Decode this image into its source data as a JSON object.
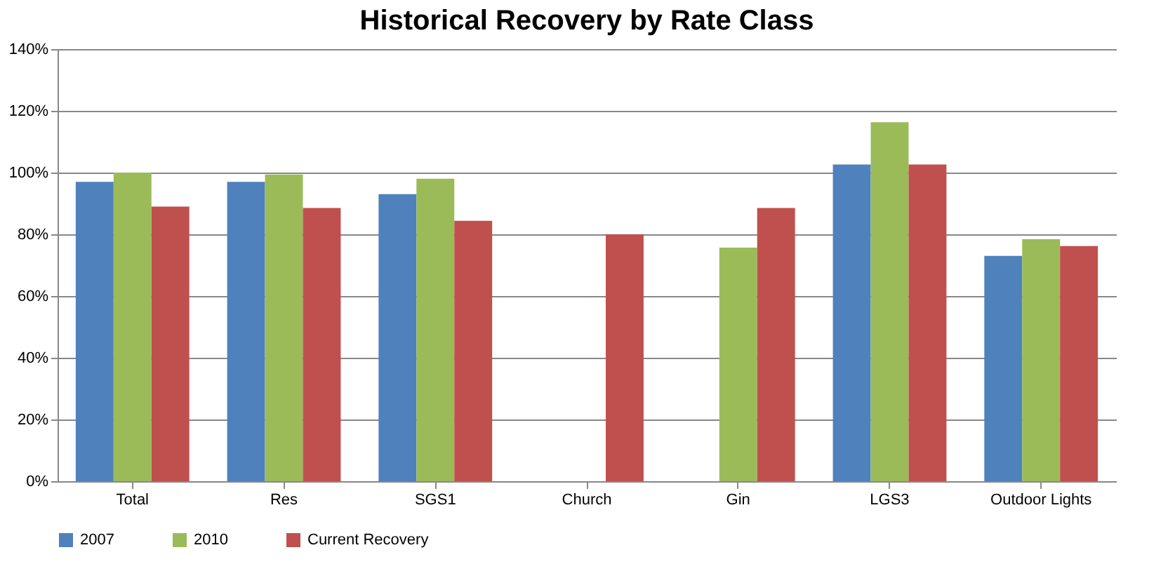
{
  "chart_data": {
    "type": "bar",
    "title": "Historical Recovery by Rate Class",
    "categories": [
      "Total",
      "Res",
      "SGS1",
      "Church",
      "Gin",
      "LGS3",
      "Outdoor Lights"
    ],
    "series": [
      {
        "name": "2007",
        "color": "#4f81bd",
        "values": [
          97,
          97,
          93,
          null,
          null,
          102.6,
          73
        ]
      },
      {
        "name": "2010",
        "color": "#9bbb59",
        "values": [
          100,
          99.4,
          98,
          null,
          75.7,
          116.3,
          78.4
        ]
      },
      {
        "name": "Current Recovery",
        "color": "#c0504d",
        "values": [
          89,
          88.5,
          84.4,
          80,
          88.5,
          102.6,
          76.2
        ]
      }
    ],
    "ylim": [
      0,
      140
    ],
    "yticks": [
      {
        "value": 0,
        "label": "0%"
      },
      {
        "value": 20,
        "label": "20%"
      },
      {
        "value": 40,
        "label": "40%"
      },
      {
        "value": 60,
        "label": "60%"
      },
      {
        "value": 80,
        "label": "80%"
      },
      {
        "value": 100,
        "label": "100%"
      },
      {
        "value": 120,
        "label": "120%"
      },
      {
        "value": 140,
        "label": "140%"
      }
    ],
    "grid": "y",
    "legend": "bottom"
  }
}
